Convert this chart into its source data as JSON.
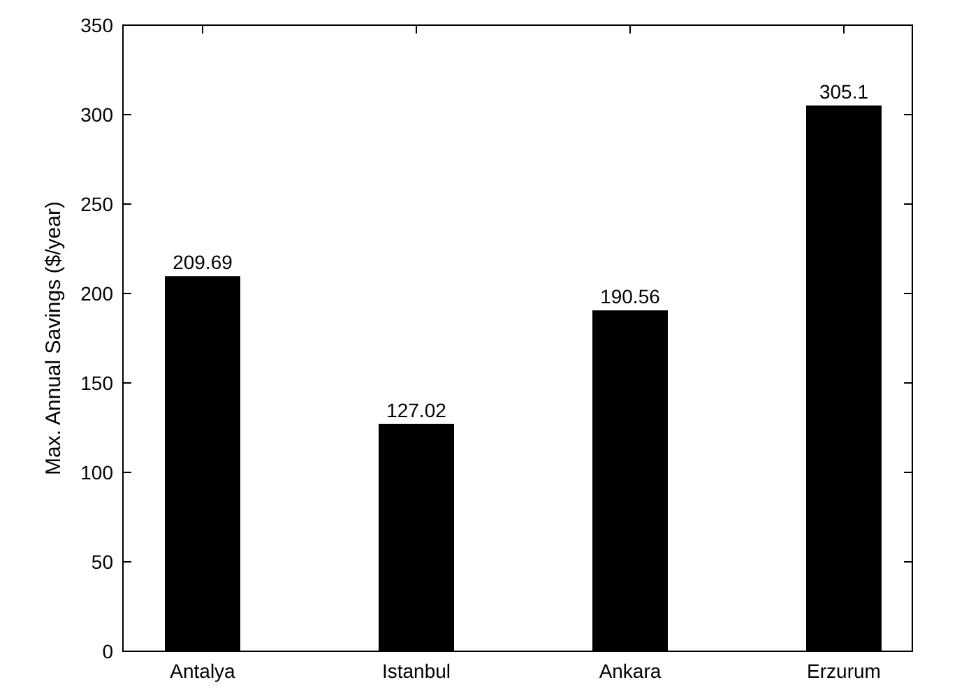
{
  "chart_data": {
    "type": "bar",
    "ylabel": "Max. Annual Savings ($/year)",
    "categories": [
      "Antalya",
      "Istanbul",
      "Ankara",
      "Erzurum"
    ],
    "values": [
      209.69,
      127.02,
      190.56,
      305.1
    ],
    "color": "#000000",
    "ylim": [
      0,
      350
    ],
    "yticks": [
      0,
      50,
      100,
      150,
      200,
      250,
      300,
      350
    ],
    "grid": false,
    "data_labels": true
  }
}
